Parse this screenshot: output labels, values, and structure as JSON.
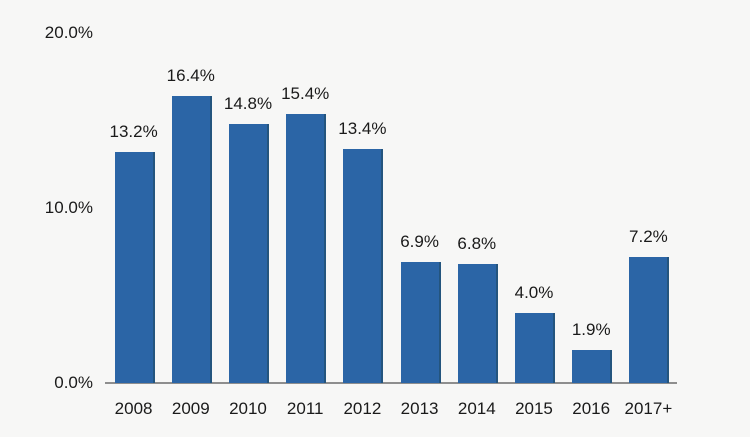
{
  "chart_data": {
    "type": "bar",
    "title": "",
    "xlabel": "",
    "ylabel": "",
    "categories": [
      "2008",
      "2009",
      "2010",
      "2011",
      "2012",
      "2013",
      "2014",
      "2015",
      "2016",
      "2017+"
    ],
    "values": [
      13.2,
      16.4,
      14.8,
      15.4,
      13.4,
      6.9,
      6.8,
      4.0,
      1.9,
      7.2
    ],
    "data_labels": [
      "13.2%",
      "16.4%",
      "14.8%",
      "15.4%",
      "13.4%",
      "6.9%",
      "6.8%",
      "4.0%",
      "1.9%",
      "7.2%"
    ],
    "ylim": [
      0,
      20
    ],
    "yticks": [
      {
        "value": 0,
        "label": "0.0%"
      },
      {
        "value": 10,
        "label": "10.0%"
      },
      {
        "value": 20,
        "label": "20.0%"
      }
    ],
    "grid": false,
    "legend": null,
    "colors": {
      "bar_fill": "#2b65a6",
      "bar_edge": "#24557e",
      "axis_line": "#8e8e8e",
      "background": "#f7f7f6",
      "text": "#1a1a1a"
    }
  }
}
